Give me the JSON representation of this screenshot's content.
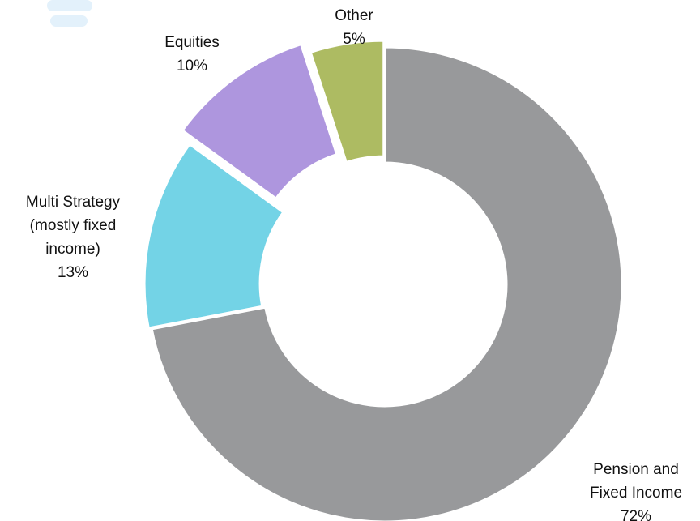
{
  "chart_data": {
    "type": "donut",
    "categories": [
      "Pension and Fixed Income",
      "Multi Strategy (mostly fixed income)",
      "Equities",
      "Other"
    ],
    "values": [
      72,
      13,
      10,
      5
    ],
    "value_labels": [
      "72%",
      "13%",
      "10%",
      "5%"
    ],
    "colors": [
      "#98999b",
      "#73d3e6",
      "#ae96de",
      "#adbb62"
    ]
  }
}
